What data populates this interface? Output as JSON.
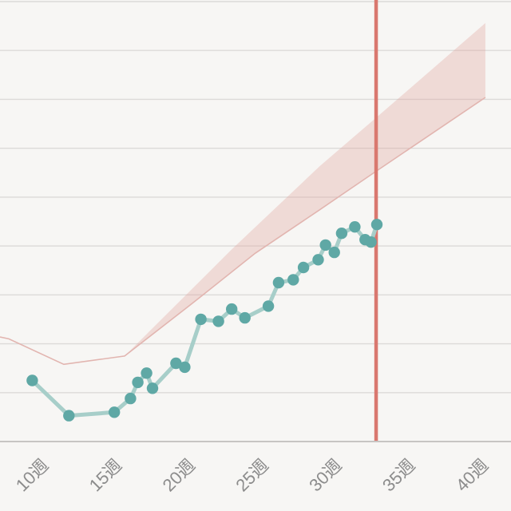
{
  "chart_data": {
    "type": "line",
    "title": "",
    "xlabel": "",
    "ylabel": "",
    "x_unit": "pregnancy_week",
    "y_unit": "gridline_steps_from_x_axis_no_numeric_labels_visible",
    "grid": {
      "horizontal_lines": 10,
      "vertical_lines": 0
    },
    "axis": {
      "x_min_week": 6.9,
      "x_max_week": 41.75,
      "y_min": 0,
      "y_max": 9
    },
    "x_ticks": [
      {
        "week": 10,
        "label": "10週"
      },
      {
        "week": 15,
        "label": "15週"
      },
      {
        "week": 20,
        "label": "20週"
      },
      {
        "week": 25,
        "label": "25週"
      },
      {
        "week": 30,
        "label": "30週"
      },
      {
        "week": 35,
        "label": "35週"
      },
      {
        "week": 40,
        "label": "40週"
      }
    ],
    "series": [
      {
        "name": "recorded-weight",
        "style": "line-with-dots",
        "points": [
          [
            9.1,
            1.25
          ],
          [
            11.6,
            0.53
          ],
          [
            14.7,
            0.6
          ],
          [
            15.8,
            0.88
          ],
          [
            16.3,
            1.21
          ],
          [
            16.9,
            1.4
          ],
          [
            17.3,
            1.09
          ],
          [
            18.9,
            1.6
          ],
          [
            19.5,
            1.52
          ],
          [
            20.6,
            2.5
          ],
          [
            21.8,
            2.46
          ],
          [
            22.7,
            2.71
          ],
          [
            23.6,
            2.53
          ],
          [
            25.2,
            2.77
          ],
          [
            25.9,
            3.25
          ],
          [
            26.9,
            3.31
          ],
          [
            27.6,
            3.56
          ],
          [
            28.6,
            3.72
          ],
          [
            29.1,
            4.02
          ],
          [
            29.7,
            3.87
          ],
          [
            30.2,
            4.26
          ],
          [
            31.1,
            4.39
          ],
          [
            31.8,
            4.13
          ],
          [
            32.2,
            4.08
          ],
          [
            32.6,
            4.44
          ]
        ]
      }
    ],
    "recommended_range_band": {
      "band_start_week": 15.4,
      "band_end_week": 40,
      "lower_edge": [
        [
          6.9,
          2.14
        ],
        [
          7.5,
          2.1
        ],
        [
          11.25,
          1.58
        ],
        [
          15.4,
          1.75
        ],
        [
          20.2,
          2.87
        ],
        [
          24.3,
          3.85
        ],
        [
          28.7,
          4.74
        ],
        [
          32.5,
          5.52
        ],
        [
          40,
          7.04
        ]
      ],
      "upper_edge": [
        [
          15.4,
          1.75
        ],
        [
          22.7,
          3.93
        ],
        [
          28.7,
          5.63
        ],
        [
          32.5,
          6.61
        ],
        [
          40,
          8.56
        ]
      ]
    },
    "current_week_marker": {
      "week": 32.55
    },
    "legend": {
      "visible": false
    },
    "colors": {
      "background": "#f7f6f4",
      "gridline": "#dcdad8",
      "axis_line": "#c7c5c3",
      "band_fill": "#e2a19b",
      "band_fill_opacity": 0.33,
      "band_edge_line": "#e2b5b0",
      "weight_line": "#a7cec9",
      "weight_dot": "#5fa8a5",
      "current_week_line": "#d9786f",
      "tick_label": "#8c8c8c"
    }
  }
}
